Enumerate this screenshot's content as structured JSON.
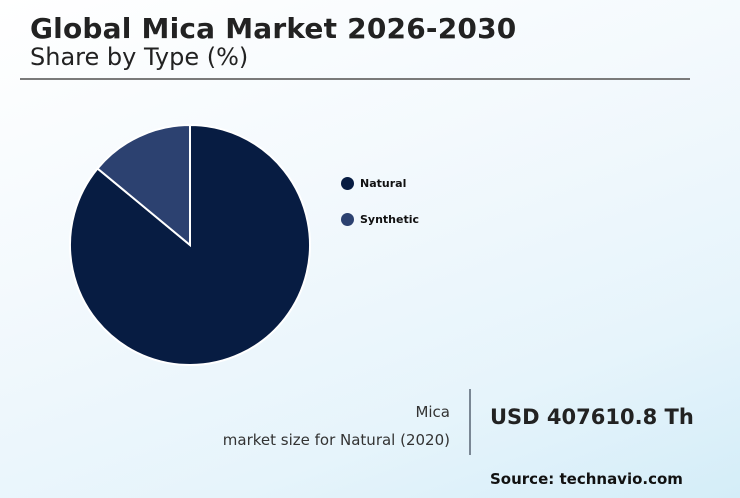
{
  "header": {
    "title": "Global Mica Market 2026-2030",
    "subtitle": "Share by Type (%)"
  },
  "legend": [
    {
      "label": "Natural",
      "color": "#071c42"
    },
    {
      "label": "Synthetic",
      "color": "#2c4170"
    }
  ],
  "stat": {
    "line1": "Mica",
    "line2": "market size for Natural (2020)",
    "value": "USD 407610.8 Th"
  },
  "source": "Source: technavio.com",
  "chart_data": {
    "type": "pie",
    "title": "Global Mica Market 2026-2030",
    "subtitle": "Share by Type (%)",
    "categories": [
      "Natural",
      "Synthetic"
    ],
    "values": [
      86,
      14
    ],
    "colors": [
      "#071c42",
      "#2c4170"
    ],
    "legend_position": "right",
    "annotations": [
      "Mica market size for Natural (2020): USD 407610.8 Th",
      "Source: technavio.com"
    ]
  }
}
